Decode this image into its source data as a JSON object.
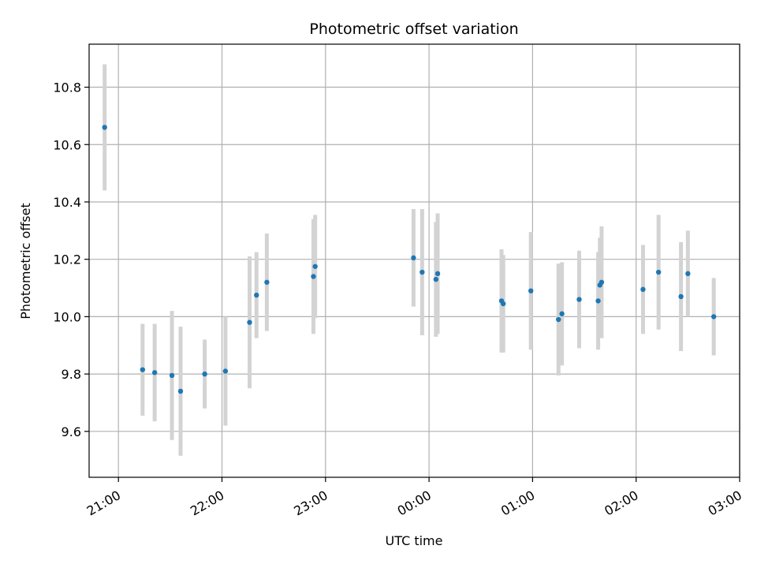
{
  "chart_data": {
    "type": "scatter",
    "title": "Photometric offset variation",
    "xlabel": "UTC time",
    "ylabel": "Photometric offset",
    "x_unit": "UTC time (HH:MM); times after midnight belong to the following day",
    "xlim": [
      "20:43",
      "03:00"
    ],
    "ylim": [
      9.44,
      10.95
    ],
    "xticks": [
      "21:00",
      "22:00",
      "23:00",
      "00:00",
      "01:00",
      "02:00",
      "03:00"
    ],
    "yticks": [
      9.6,
      9.8,
      10.0,
      10.2,
      10.4,
      10.6,
      10.8
    ],
    "grid": true,
    "legend": "none",
    "series": [
      {
        "marker_color": "#1f77b4",
        "errorbar_color": "#d3d3d3",
        "points": [
          {
            "x": "20:52",
            "y": 10.66,
            "err": 0.22
          },
          {
            "x": "21:14",
            "y": 9.815,
            "err": 0.16
          },
          {
            "x": "21:21",
            "y": 9.805,
            "err": 0.17
          },
          {
            "x": "21:31",
            "y": 9.795,
            "err": 0.225
          },
          {
            "x": "21:36",
            "y": 9.74,
            "err": 0.225
          },
          {
            "x": "21:50",
            "y": 9.8,
            "err": 0.12
          },
          {
            "x": "22:02",
            "y": 9.81,
            "err": 0.19
          },
          {
            "x": "22:16",
            "y": 9.98,
            "err": 0.23
          },
          {
            "x": "22:20",
            "y": 10.075,
            "err": 0.15
          },
          {
            "x": "22:26",
            "y": 10.12,
            "err": 0.17
          },
          {
            "x": "22:53",
            "y": 10.14,
            "err": 0.2
          },
          {
            "x": "22:54",
            "y": 10.175,
            "err": 0.18
          },
          {
            "x": "23:51",
            "y": 10.205,
            "err": 0.17
          },
          {
            "x": "23:56",
            "y": 10.155,
            "err": 0.22
          },
          {
            "x": "00:04",
            "y": 10.13,
            "err": 0.2
          },
          {
            "x": "00:05",
            "y": 10.15,
            "err": 0.21
          },
          {
            "x": "00:42",
            "y": 10.055,
            "err": 0.18
          },
          {
            "x": "00:43",
            "y": 10.045,
            "err": 0.17
          },
          {
            "x": "00:59",
            "y": 10.09,
            "err": 0.205
          },
          {
            "x": "01:15",
            "y": 9.99,
            "err": 0.195
          },
          {
            "x": "01:17",
            "y": 10.01,
            "err": 0.18
          },
          {
            "x": "01:27",
            "y": 10.06,
            "err": 0.17
          },
          {
            "x": "01:38",
            "y": 10.055,
            "err": 0.17
          },
          {
            "x": "01:39",
            "y": 10.11,
            "err": 0.165
          },
          {
            "x": "01:40",
            "y": 10.12,
            "err": 0.195
          },
          {
            "x": "02:04",
            "y": 10.095,
            "err": 0.155
          },
          {
            "x": "02:13",
            "y": 10.155,
            "err": 0.2
          },
          {
            "x": "02:26",
            "y": 10.07,
            "err": 0.19
          },
          {
            "x": "02:30",
            "y": 10.15,
            "err": 0.15
          },
          {
            "x": "02:45",
            "y": 10.0,
            "err": 0.135
          }
        ]
      }
    ]
  }
}
